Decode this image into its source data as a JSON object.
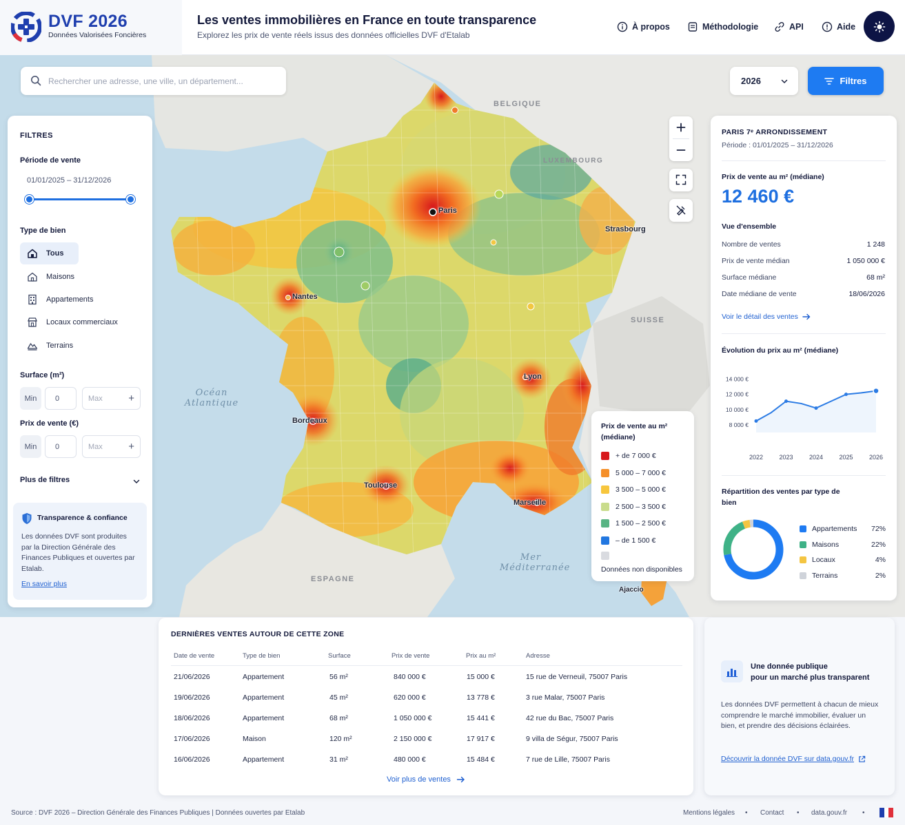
{
  "header": {
    "brand_title": "DVF 2026",
    "brand_subtitle": "Données Valorisées Foncières",
    "title": "Les ventes immobilières en France en toute transparence",
    "subtitle": "Explorez les prix de vente réels issus des données officielles DVF d'Etalab",
    "nav": [
      "À propos",
      "Méthodologie",
      "API",
      "Aide"
    ]
  },
  "search": {
    "placeholder": "Rechercher une adresse, une ville, un département...",
    "value": ""
  },
  "year_select": {
    "selected": "2026"
  },
  "filters_button": "Filtres",
  "map": {
    "sea_labels": [
      "Océan Atlantique",
      "Mer Méditerranée"
    ],
    "countries": [
      "BELGIQUE",
      "LUXEMBOURG",
      "SUISSE",
      "ESPAGNE"
    ],
    "cities": [
      "Paris",
      "Strasbourg",
      "Nantes",
      "Lyon",
      "Bordeaux",
      "Toulouse",
      "Marseille",
      "Ajaccio"
    ]
  },
  "filters": {
    "title": "FILTRES",
    "period_label": "Période de vente",
    "period_range": "01/01/2025 – 31/12/2026",
    "type_label": "Type de bien",
    "types": [
      "Tous",
      "Maisons",
      "Appartements",
      "Locaux commerciaux",
      "Terrains"
    ],
    "selected_type": "Tous",
    "surface_label": "Surface (m²)",
    "price_label": "Prix de vente (€)",
    "min_label": "Min",
    "min_value": "0",
    "max_placeholder": "Max",
    "more_filters": "Plus de filtres",
    "trust_title": "Transparence & confiance",
    "trust_body": "Les données DVF sont produites par la Direction Générale des Finances Publiques et ouvertes par Etalab.",
    "trust_link": "En savoir plus"
  },
  "legend": {
    "title": "Prix de vente au m² (médiane)",
    "items": [
      {
        "label": "+ de 7 000 €",
        "color": "#d7191c"
      },
      {
        "label": "5 000 – 7 000 €",
        "color": "#f58f29"
      },
      {
        "label": "3 500 – 5 000 €",
        "color": "#f7c63d"
      },
      {
        "label": "2 500 – 3 500 €",
        "color": "#c9dc8c"
      },
      {
        "label": "1 500 – 2 500 €",
        "color": "#58b483"
      },
      {
        "label": "– de 1 500 €",
        "color": "#2277e0"
      }
    ],
    "na_label": "Données non disponibles",
    "na_color": "#d9dbe0"
  },
  "info": {
    "area": "PARIS 7ᵉ ARRONDISSEMENT",
    "period": "Période : 01/01/2025 – 31/12/2026",
    "price_label": "Prix de vente au m² (médiane)",
    "price_value": "12 460 €",
    "overview_label": "Vue d'ensemble",
    "stats": [
      {
        "label": "Nombre de ventes",
        "value": "1 248"
      },
      {
        "label": "Prix de vente médian",
        "value": "1 050 000 €"
      },
      {
        "label": "Surface médiane",
        "value": "68 m²"
      },
      {
        "label": "Date médiane de vente",
        "value": "18/06/2026"
      }
    ],
    "detail_link": "Voir le détail des ventes",
    "evolution_label": "Évolution du prix au m² (médiane)",
    "split_label": "Répartition des ventes par type de bien"
  },
  "chart_data": [
    {
      "type": "line",
      "title": "Évolution du prix au m² (médiane)",
      "x": [
        2022,
        2022.5,
        2023,
        2023.5,
        2024,
        2024.5,
        2025,
        2025.5,
        2026
      ],
      "x_tick_labels": [
        "2022",
        "2023",
        "2024",
        "2025",
        "2026"
      ],
      "y_tick_labels": [
        "14 000 €",
        "12 000 €",
        "10 000 €",
        "8 000 €"
      ],
      "series": [
        {
          "values": [
            8500,
            9600,
            11100,
            10800,
            10200,
            11100,
            12000,
            12200,
            12460
          ]
        }
      ],
      "ylim": [
        7000,
        14500
      ],
      "grid": false,
      "color": "#2b7be4"
    },
    {
      "type": "pie",
      "title": "Répartition des ventes par type de bien",
      "labels": [
        "Appartements",
        "Maisons",
        "Locaux",
        "Terrains"
      ],
      "values": [
        72,
        22,
        4,
        2
      ],
      "value_labels": [
        "72%",
        "22%",
        "4%",
        "2%"
      ],
      "colors": [
        "#1e7bf2",
        "#3fb287",
        "#f4c542",
        "#cfd3da"
      ],
      "donut": true
    }
  ],
  "sales": {
    "title": "DERNIÈRES VENTES AUTOUR DE CETTE ZONE",
    "headers": [
      "Date de vente",
      "Type de bien",
      "Surface",
      "Prix de vente",
      "Prix au m²",
      "Adresse"
    ],
    "rows": [
      [
        "21/06/2026",
        "Appartement",
        "56 m²",
        "840 000 €",
        "15 000 €",
        "15 rue de Verneuil, 75007 Paris"
      ],
      [
        "19/06/2026",
        "Appartement",
        "45 m²",
        "620 000 €",
        "13 778 €",
        "3 rue Malar, 75007 Paris"
      ],
      [
        "18/06/2026",
        "Appartement",
        "68 m²",
        "1 050 000 €",
        "15 441 €",
        "42 rue du Bac, 75007 Paris"
      ],
      [
        "17/06/2026",
        "Maison",
        "120 m²",
        "2 150 000 €",
        "17 917 €",
        "9 villa de Ségur, 75007 Paris"
      ],
      [
        "16/06/2026",
        "Appartement",
        "31 m²",
        "480 000 €",
        "15 484 €",
        "7 rue de Lille, 75007 Paris"
      ]
    ],
    "more_link": "Voir plus de ventes"
  },
  "public_card": {
    "title_line1": "Une donnée publique",
    "title_line2": "pour un marché plus transparent",
    "body": "Les données DVF permettent à chacun de mieux comprendre le marché immobilier, évaluer un bien, et prendre des décisions éclairées.",
    "link": "Découvrir la donnée DVF sur data.gouv.fr"
  },
  "footer": {
    "source": "Source : DVF 2026 – Direction Générale des Finances Publiques | Données ouvertes par Etalab",
    "links": [
      "Mentions légales",
      "Contact",
      "data.gouv.fr"
    ],
    "separator": "•"
  }
}
